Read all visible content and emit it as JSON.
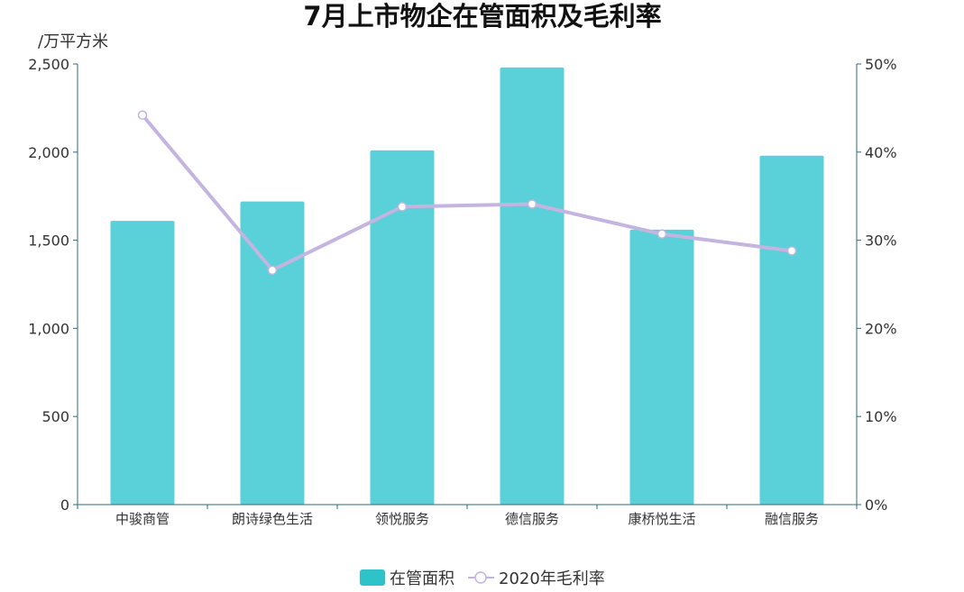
{
  "chart_data": {
    "type": "bar",
    "title": "7月上市物企在管面积及毛利率",
    "left_axis_unit": "/万平方米",
    "categories": [
      "中骏商管",
      "朗诗绿色生活",
      "领悦服务",
      "德信服务",
      "康桥悦生活",
      "融信服务"
    ],
    "series": [
      {
        "name": "在管面积",
        "type": "bar",
        "axis": "left",
        "color": "#5ad1d8",
        "values": [
          1610,
          1720,
          2010,
          2480,
          1560,
          1980
        ]
      },
      {
        "name": "2020年毛利率",
        "type": "line",
        "axis": "right",
        "color": "#c3b4e0",
        "values": [
          44.2,
          26.6,
          33.8,
          34.1,
          30.7,
          28.8
        ]
      }
    ],
    "left_axis": {
      "min": 0,
      "max": 2500,
      "ticks": [
        "0",
        "500",
        "1,000",
        "1,500",
        "2,000",
        "2,500"
      ]
    },
    "right_axis": {
      "min": 0,
      "max": 50,
      "ticks": [
        "0%",
        "10%",
        "20%",
        "30%",
        "40%",
        "50%"
      ]
    },
    "grid": false,
    "legend_position": "bottom-center",
    "legend_bar_color": "#2ec2c9",
    "axis_color": "#2f6b7c"
  }
}
